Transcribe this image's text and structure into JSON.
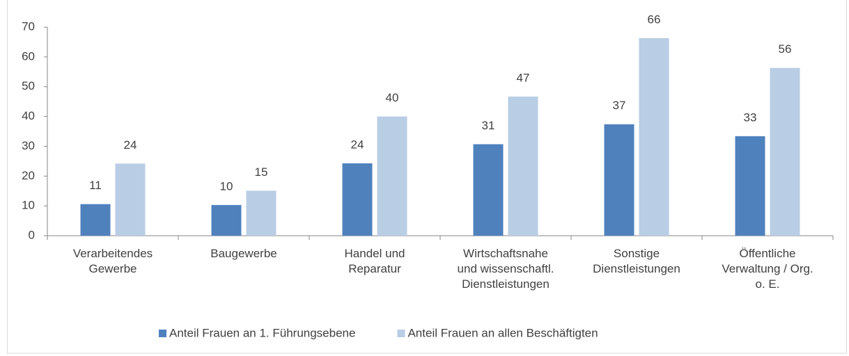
{
  "chart_data": {
    "type": "bar",
    "categories": [
      "Verarbeitendes\nGewerbe",
      "Baugewerbe",
      "Handel und\nReparatur",
      "Wirtschaftsnahe\nund wissenschaftl.\nDienstleistungen",
      "Sonstige\nDienstleistungen",
      "Öffentliche\nVerwaltung / Org.\no. E."
    ],
    "series": [
      {
        "name": "Anteil Frauen an 1. Führungsebene",
        "color": "#4f81bd",
        "values": [
          10.6,
          10.3,
          24.3,
          30.7,
          37.4,
          33.4
        ],
        "value_labels": [
          "11",
          "10",
          "24",
          "31",
          "37",
          "33"
        ]
      },
      {
        "name": "Anteil Frauen an allen Beschäftigten",
        "color": "#b9cde5",
        "values": [
          24.2,
          15.1,
          40.0,
          46.7,
          66.3,
          56.3
        ],
        "value_labels": [
          "24",
          "15",
          "40",
          "47",
          "66",
          "56"
        ]
      }
    ],
    "ylim": [
      0,
      70
    ],
    "yticks": [
      0,
      10,
      20,
      30,
      40,
      50,
      60,
      70
    ],
    "grid": false,
    "legend": "bottom"
  }
}
